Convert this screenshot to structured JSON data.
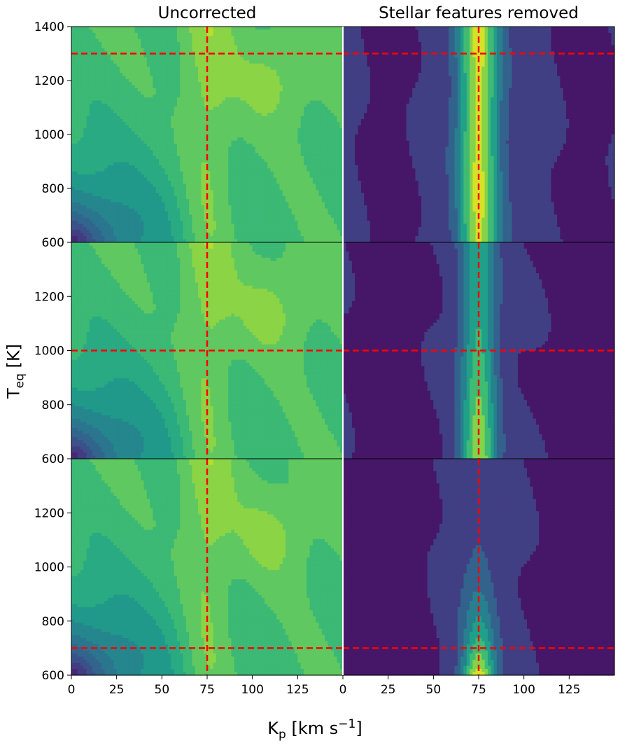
{
  "chart_data": {
    "type": "heatmap",
    "column_titles": [
      "Uncorrected",
      "Stellar features removed"
    ],
    "ylabel": {
      "main": "T",
      "sub": "eq",
      "unit": " [K]"
    },
    "xlabel": {
      "main": "K",
      "sub": "p",
      "unit": " [km s",
      "sup": "−1",
      "close": "]"
    },
    "xlim": [
      0,
      150
    ],
    "ylim": [
      600,
      1400
    ],
    "x_ticks": [
      0,
      25,
      50,
      75,
      100,
      125
    ],
    "y_ticks": [
      600,
      800,
      1000,
      1200,
      1400
    ],
    "grid": false,
    "colormap": [
      "#440154",
      "#482878",
      "#3e4989",
      "#31688e",
      "#26828e",
      "#1f9e89",
      "#35b779",
      "#6ece58",
      "#b5de2b",
      "#fde725"
    ],
    "marker_color": "#ff0000",
    "panels": [
      {
        "row": 0,
        "col": 0,
        "marker_kp": 75,
        "marker_teq": 1300,
        "style": "uncorrected",
        "peak_teq": 1200
      },
      {
        "row": 0,
        "col": 1,
        "marker_kp": 75,
        "marker_teq": 1300,
        "style": "corrected",
        "variant": 0
      },
      {
        "row": 1,
        "col": 0,
        "marker_kp": 75,
        "marker_teq": 1000,
        "style": "uncorrected",
        "peak_teq": 1150
      },
      {
        "row": 1,
        "col": 1,
        "marker_kp": 75,
        "marker_teq": 1000,
        "style": "corrected",
        "variant": 1
      },
      {
        "row": 2,
        "col": 0,
        "marker_kp": 75,
        "marker_teq": 700,
        "style": "uncorrected",
        "peak_teq": 1120
      },
      {
        "row": 2,
        "col": 1,
        "marker_kp": 75,
        "marker_teq": 700,
        "style": "corrected",
        "variant": 2
      }
    ]
  }
}
